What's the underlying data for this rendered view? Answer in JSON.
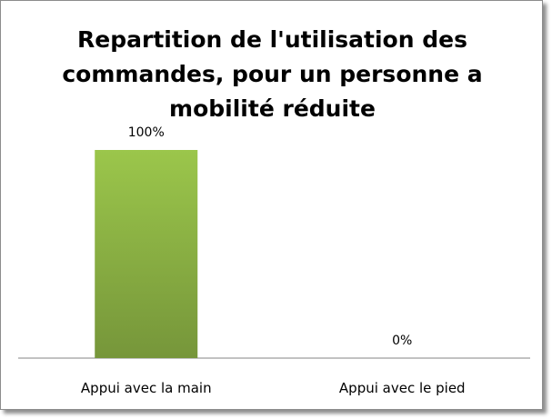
{
  "chart_data": {
    "type": "bar",
    "title": "Repartition de l'utilisation des commandes, pour un personne a mobilité réduite",
    "title_lines": [
      "Repartition de l'utilisation des",
      "commandes, pour un personne a",
      "mobilité réduite"
    ],
    "categories": [
      "Appui avec la main",
      "Appui avec le pied"
    ],
    "values": [
      100,
      0
    ],
    "data_labels": [
      "100%",
      "0%"
    ],
    "ylim": [
      0,
      100
    ],
    "grid": false,
    "legend": "none",
    "bar_color": "#8db449",
    "bar_color_light": "#9bc64b",
    "bar_color_dark": "#76963a",
    "axis_color": "#868686"
  }
}
